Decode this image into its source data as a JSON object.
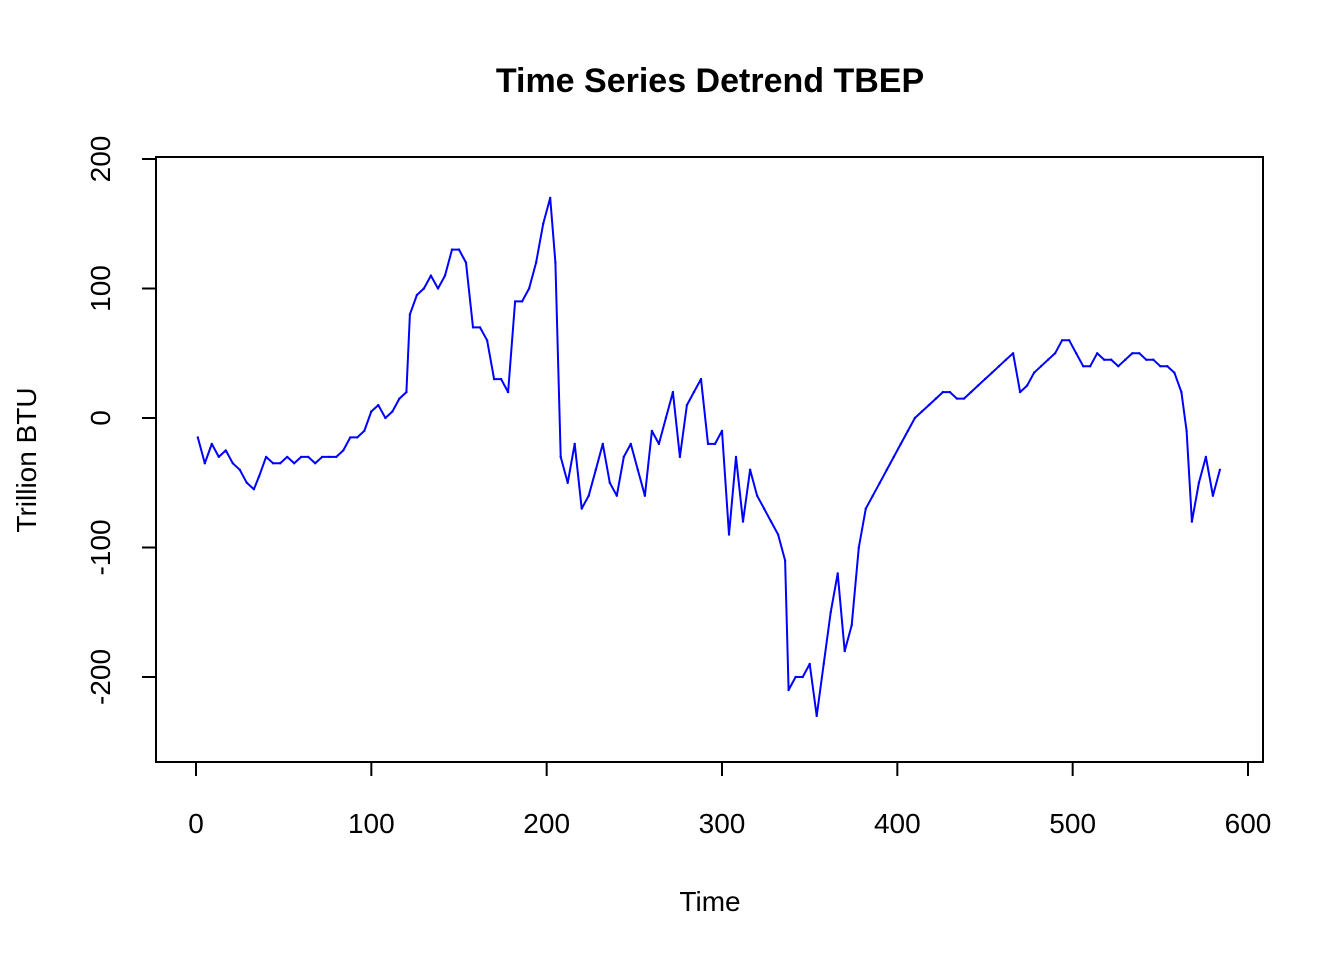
{
  "chart_data": {
    "type": "line",
    "title": "Time Series Detrend TBEP",
    "xlabel": "Time",
    "ylabel": "Trillion BTU",
    "xlim": [
      0,
      600
    ],
    "ylim": [
      -250,
      200
    ],
    "xticks": [
      0,
      100,
      200,
      300,
      400,
      500,
      600
    ],
    "xtick_labels": [
      "0",
      "100",
      "200",
      "300",
      "400",
      "500",
      "600"
    ],
    "yticks": [
      -200,
      -100,
      0,
      100,
      200
    ],
    "ytick_labels": [
      "-200",
      "-100",
      "0",
      "100",
      "200"
    ],
    "line_color": "#0000ff",
    "grid": false,
    "series": [
      {
        "x": [
          1,
          5,
          9,
          13,
          17,
          21,
          25,
          29,
          33,
          36,
          40,
          44,
          48,
          52,
          56,
          60,
          64,
          68,
          72,
          76,
          80,
          84,
          88,
          92,
          96,
          100,
          104,
          108,
          112,
          116,
          120,
          122,
          126,
          130,
          134,
          138,
          142,
          146,
          150,
          154,
          158,
          162,
          166,
          170,
          174,
          178,
          182,
          186,
          190,
          194,
          198,
          202,
          205,
          208,
          212,
          216,
          220,
          224,
          228,
          232,
          236,
          240,
          244,
          248,
          252,
          256,
          260,
          264,
          268,
          272,
          276,
          280,
          284,
          288,
          292,
          296,
          300,
          304,
          308,
          312,
          316,
          320,
          324,
          328,
          332,
          336,
          338,
          342,
          346,
          350,
          354,
          358,
          362,
          366,
          370,
          374,
          378,
          382,
          386,
          390,
          394,
          398,
          402,
          406,
          410,
          414,
          418,
          422,
          426,
          430,
          434,
          438,
          442,
          446,
          450,
          454,
          458,
          462,
          466,
          470,
          474,
          478,
          482,
          486,
          490,
          494,
          498,
          502,
          506,
          510,
          514,
          518,
          522,
          526,
          530,
          534,
          538,
          542,
          546,
          550,
          554,
          558,
          562,
          565,
          568,
          572,
          576,
          580,
          584
        ],
        "y": [
          -15,
          -35,
          -20,
          -30,
          -25,
          -35,
          -40,
          -50,
          -55,
          -45,
          -30,
          -35,
          -35,
          -30,
          -35,
          -30,
          -30,
          -35,
          -30,
          -30,
          -30,
          -25,
          -15,
          -15,
          -10,
          5,
          10,
          0,
          5,
          15,
          20,
          80,
          95,
          100,
          110,
          100,
          110,
          130,
          130,
          120,
          70,
          70,
          60,
          30,
          30,
          20,
          90,
          90,
          100,
          120,
          150,
          170,
          120,
          -30,
          -50,
          -20,
          -70,
          -60,
          -40,
          -20,
          -50,
          -60,
          -30,
          -20,
          -40,
          -60,
          -10,
          -20,
          0,
          20,
          -30,
          10,
          20,
          30,
          -20,
          -20,
          -10,
          -90,
          -30,
          -80,
          -40,
          -60,
          -70,
          -80,
          -90,
          -110,
          -210,
          -200,
          -200,
          -190,
          -230,
          -190,
          -150,
          -120,
          -180,
          -160,
          -100,
          -70,
          -60,
          -50,
          -40,
          -30,
          -20,
          -10,
          0,
          5,
          10,
          15,
          20,
          20,
          15,
          15,
          20,
          25,
          30,
          35,
          40,
          45,
          50,
          20,
          25,
          35,
          40,
          45,
          50,
          60,
          60,
          50,
          40,
          40,
          50,
          45,
          45,
          40,
          45,
          50,
          50,
          45,
          45,
          40,
          40,
          35,
          20,
          -10,
          -80,
          -50,
          -30,
          -60,
          -40
        ]
      }
    ]
  }
}
